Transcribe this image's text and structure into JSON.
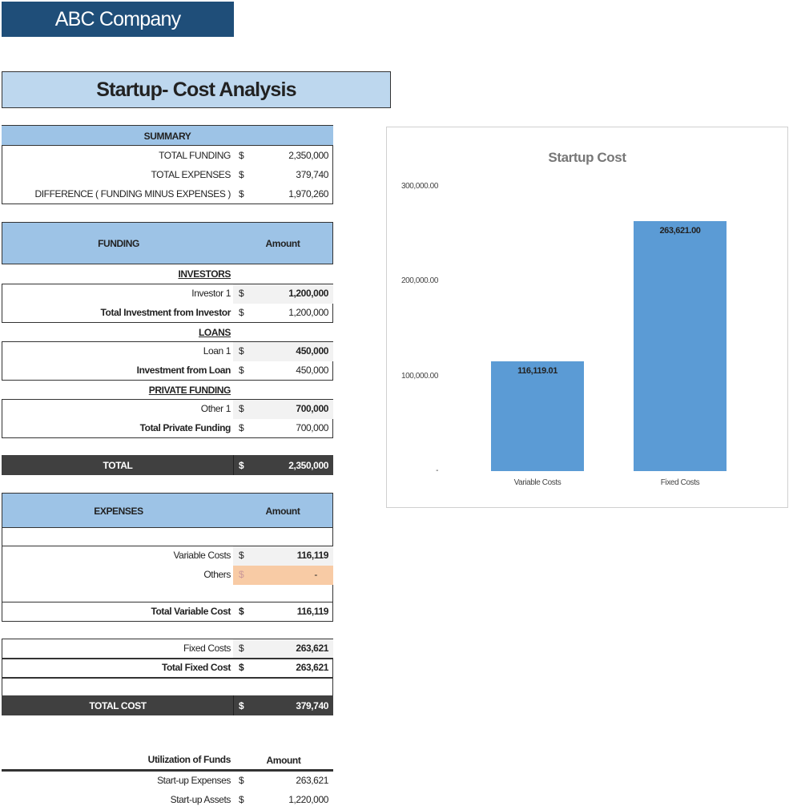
{
  "company": "ABC Company",
  "title": "Startup- Cost Analysis",
  "summary": {
    "header": "SUMMARY",
    "currency": "$",
    "rows": [
      {
        "label": "TOTAL FUNDING",
        "amount": "2,350,000"
      },
      {
        "label": "TOTAL EXPENSES",
        "amount": "379,740"
      },
      {
        "label": "DIFFERENCE  ( FUNDING MINUS EXPENSES )",
        "amount": "1,970,260"
      }
    ]
  },
  "funding": {
    "header": "FUNDING",
    "amount_header": "Amount",
    "investors": {
      "title": "INVESTORS",
      "item": "Investor 1",
      "item_amount": "1,200,000",
      "total": "Total Investment from Investor",
      "total_amount": "1,200,000"
    },
    "loans": {
      "title": "LOANS",
      "item": "Loan 1",
      "item_amount": "450,000",
      "total": "Investment from Loan",
      "total_amount": "450,000"
    },
    "private": {
      "title": "PRIVATE FUNDING",
      "item": "Other 1",
      "item_amount": "700,000",
      "total": "Total Private Funding",
      "total_amount": "700,000"
    },
    "total_label": "TOTAL",
    "total_amount": "2,350,000"
  },
  "expenses": {
    "header": "EXPENSES",
    "amount_header": "Amount",
    "variable": "Variable Costs",
    "variable_amount": "116,119",
    "others": "Others",
    "others_amount": "-",
    "total_variable": "Total Variable Cost",
    "total_variable_amount": "116,119",
    "fixed": "Fixed Costs",
    "fixed_amount": "263,621",
    "total_fixed": "Total Fixed Cost",
    "total_fixed_amount": "263,621",
    "total_label": "TOTAL  COST",
    "total_amount": "379,740"
  },
  "utilization": {
    "header": "Utilization of Funds",
    "amount_header": "Amount",
    "rows": [
      {
        "label": "Start-up Expenses",
        "amount": "263,621"
      },
      {
        "label": "Start-up Assets",
        "amount": "1,220,000"
      }
    ]
  },
  "currency": "$",
  "colors": {
    "company_bar": "#1f4e79",
    "header_fill": "#9dc3e6",
    "banner_fill": "#bdd7ee",
    "total_fill": "#404040",
    "input_fill": "#f8cba5",
    "bar": "#5b9bd5"
  },
  "chart_data": {
    "type": "bar",
    "title": "Startup Cost",
    "categories": [
      "Variable Costs",
      "Fixed Costs"
    ],
    "values": [
      116119.01,
      263621.0
    ],
    "data_labels": [
      "116,119.01",
      "263,621.00"
    ],
    "ylim": [
      0,
      300000
    ],
    "yticks": [
      "-",
      "100,000.00",
      "200,000.00",
      "300,000.00"
    ],
    "grid": false,
    "legend": "none"
  }
}
